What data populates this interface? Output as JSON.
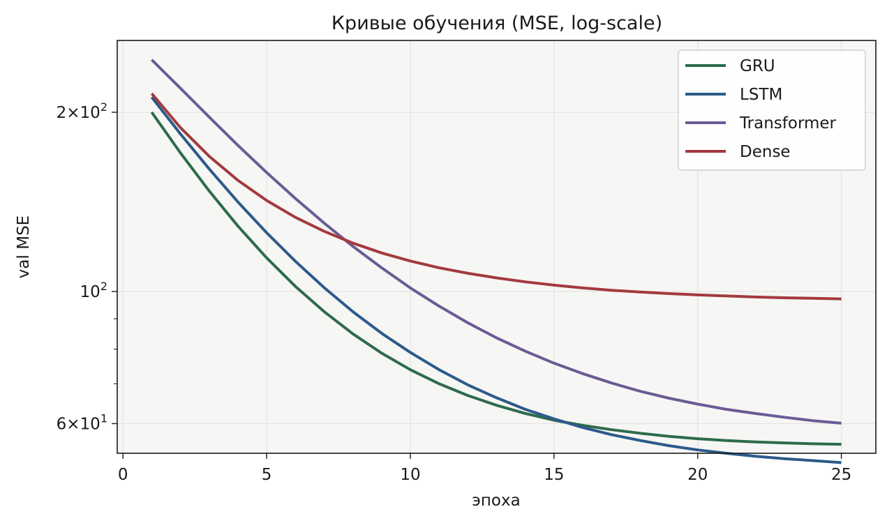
{
  "chart_data": {
    "type": "line",
    "title": "Кривые обучения (MSE, log-scale)",
    "xlabel": "эпоха",
    "ylabel": "val MSE",
    "xlim": [
      -0.2,
      26.2
    ],
    "ylim": [
      53.5,
      264
    ],
    "yscale": "log",
    "grid": true,
    "legend_position": "top-right",
    "x_ticks": [
      0,
      5,
      10,
      15,
      20,
      25
    ],
    "y_tick_labels": [
      {
        "value": 200,
        "mantissa": "2",
        "exponent": "2"
      },
      {
        "value": 100,
        "mantissa": "",
        "exponent": "2"
      },
      {
        "value": 60,
        "mantissa": "6",
        "exponent": "1"
      }
    ],
    "x": [
      1,
      2,
      3,
      4,
      5,
      6,
      7,
      8,
      9,
      10,
      11,
      12,
      13,
      14,
      15,
      16,
      17,
      18,
      19,
      20,
      21,
      22,
      23,
      24,
      25
    ],
    "series": [
      {
        "name": "GRU",
        "color": "#2e6b4a",
        "values": [
          200.0,
          170.9,
          147.5,
          128.8,
          113.9,
          102.0,
          92.5,
          84.9,
          78.8,
          73.9,
          70.0,
          66.9,
          64.4,
          62.4,
          60.8,
          59.6,
          58.6,
          57.8,
          57.1,
          56.6,
          56.2,
          55.9,
          55.7,
          55.5,
          55.4
        ]
      },
      {
        "name": "LSTM",
        "color": "#2c5a8a",
        "values": [
          212.0,
          183.9,
          160.6,
          141.4,
          125.5,
          112.4,
          101.5,
          92.5,
          85.1,
          79.0,
          73.9,
          69.7,
          66.3,
          63.4,
          61.1,
          59.1,
          57.5,
          56.2,
          55.1,
          54.2,
          53.5,
          52.9,
          52.4,
          52.0,
          51.6
        ]
      },
      {
        "name": "Transformer",
        "color": "#6b5b95",
        "values": [
          245.0,
          219.4,
          196.3,
          176.0,
          158.4,
          143.3,
          130.3,
          119.1,
          109.6,
          101.4,
          94.5,
          88.6,
          83.6,
          79.4,
          75.8,
          72.8,
          70.2,
          68.0,
          66.2,
          64.7,
          63.4,
          62.4,
          61.5,
          60.7,
          60.1
        ]
      },
      {
        "name": "Dense",
        "color": "#a33a3e",
        "values": [
          215.0,
          188.4,
          168.7,
          153.7,
          142.2,
          133.2,
          126.2,
          120.6,
          116.1,
          112.5,
          109.6,
          107.3,
          105.4,
          103.8,
          102.5,
          101.4,
          100.5,
          99.8,
          99.2,
          98.7,
          98.3,
          97.9,
          97.6,
          97.4,
          97.2
        ]
      }
    ]
  }
}
